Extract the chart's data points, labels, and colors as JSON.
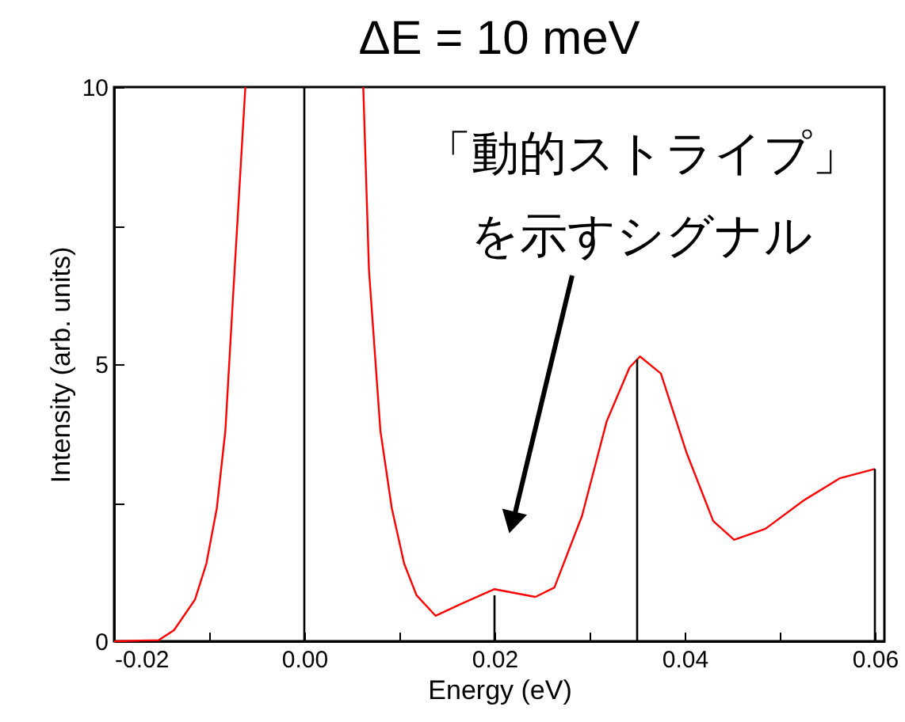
{
  "chart_data": {
    "type": "line",
    "title": "ΔE = 10 meV",
    "xlabel": "Energy (eV)",
    "ylabel": "Intensity (arb. units)",
    "xlim": [
      -0.02,
      0.061
    ],
    "ylim": [
      0,
      10
    ],
    "xticks": [
      {
        "value": -0.02,
        "label": "-0.02"
      },
      {
        "value": -0.01,
        "label": null
      },
      {
        "value": 0,
        "label": "0.00"
      },
      {
        "value": 0.01,
        "label": null
      },
      {
        "value": 0.02,
        "label": "0.02"
      },
      {
        "value": 0.03,
        "label": null
      },
      {
        "value": 0.04,
        "label": "0.04"
      },
      {
        "value": 0.05,
        "label": null
      },
      {
        "value": 0.06,
        "label": "0.06"
      }
    ],
    "yticks": [
      0,
      {
        "value": 2.5,
        "label": null
      },
      5,
      {
        "value": 7.5,
        "label": null
      },
      10
    ],
    "grid": false,
    "annotations": [
      "「動的ストライプ」を示すシグナル"
    ],
    "series": [
      {
        "color": "#ff0000",
        "x": [
          -0.02,
          -0.0153,
          -0.0137,
          -0.0115,
          -0.0103,
          -0.0092,
          -0.0083,
          -0.0075,
          -0.0062,
          0,
          0.0062,
          0.0068,
          0.008,
          0.0092,
          0.0105,
          0.0118,
          0.0138,
          0.0163,
          0.02,
          0.0243,
          0.0263,
          0.0292,
          0.0318,
          0.0342,
          0.0353,
          0.0375,
          0.0402,
          0.043,
          0.0452,
          0.0485,
          0.0525,
          0.0563,
          0.06
        ],
        "values": [
          0,
          0.02,
          0.2,
          0.75,
          1.4,
          2.4,
          3.8,
          6.2,
          10,
          null,
          10,
          6.7,
          3.8,
          2.4,
          1.4,
          0.83,
          0.46,
          0.66,
          0.94,
          0.8,
          0.97,
          2.26,
          3.97,
          4.94,
          5.14,
          4.83,
          3.4,
          2.17,
          1.83,
          2.03,
          2.54,
          2.94,
          3.11
        ]
      },
      {
        "type": "bar",
        "color": "#000000",
        "x": [
          0,
          0.02,
          0.035,
          0.06
        ],
        "values": [
          10,
          0.83,
          5.09,
          3.11
        ]
      }
    ]
  }
}
